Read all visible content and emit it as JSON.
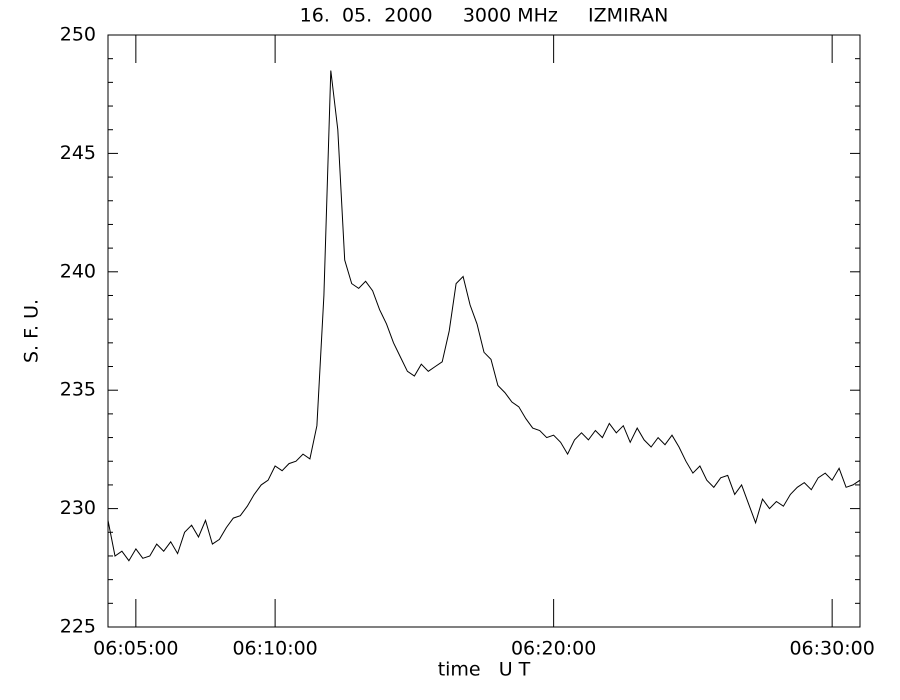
{
  "chart_data": {
    "type": "line",
    "title": "16.  05.  2000     3000 MHz     IZMIRAN",
    "xlabel": "time   U T",
    "ylabel": "S. F. U.",
    "x": [
      "06:04:00",
      "06:04:15",
      "06:04:30",
      "06:04:45",
      "06:05:00",
      "06:05:15",
      "06:05:30",
      "06:05:45",
      "06:06:00",
      "06:06:15",
      "06:06:30",
      "06:06:45",
      "06:07:00",
      "06:07:15",
      "06:07:30",
      "06:07:45",
      "06:08:00",
      "06:08:15",
      "06:08:30",
      "06:08:45",
      "06:09:00",
      "06:09:15",
      "06:09:30",
      "06:09:45",
      "06:10:00",
      "06:10:15",
      "06:10:30",
      "06:10:45",
      "06:11:00",
      "06:11:15",
      "06:11:30",
      "06:11:45",
      "06:12:00",
      "06:12:15",
      "06:12:30",
      "06:12:45",
      "06:13:00",
      "06:13:15",
      "06:13:30",
      "06:13:45",
      "06:14:00",
      "06:14:15",
      "06:14:30",
      "06:14:45",
      "06:15:00",
      "06:15:15",
      "06:15:30",
      "06:15:45",
      "06:16:00",
      "06:16:15",
      "06:16:30",
      "06:16:45",
      "06:17:00",
      "06:17:15",
      "06:17:30",
      "06:17:45",
      "06:18:00",
      "06:18:15",
      "06:18:30",
      "06:18:45",
      "06:19:00",
      "06:19:15",
      "06:19:30",
      "06:19:45",
      "06:20:00",
      "06:20:15",
      "06:20:30",
      "06:20:45",
      "06:21:00",
      "06:21:15",
      "06:21:30",
      "06:21:45",
      "06:22:00",
      "06:22:15",
      "06:22:30",
      "06:22:45",
      "06:23:00",
      "06:23:15",
      "06:23:30",
      "06:23:45",
      "06:24:00",
      "06:24:15",
      "06:24:30",
      "06:24:45",
      "06:25:00",
      "06:25:15",
      "06:25:30",
      "06:25:45",
      "06:26:00",
      "06:26:15",
      "06:26:30",
      "06:26:45",
      "06:27:00",
      "06:27:15",
      "06:27:30",
      "06:27:45",
      "06:28:00",
      "06:28:15",
      "06:28:30",
      "06:28:45",
      "06:29:00",
      "06:29:15",
      "06:29:30",
      "06:29:45",
      "06:30:00",
      "06:30:15",
      "06:30:30",
      "06:30:45",
      "06:31:00"
    ],
    "series": [
      {
        "color": "#000000",
        "values": [
          229.5,
          228.0,
          228.2,
          227.8,
          228.3,
          227.9,
          228.0,
          228.5,
          228.2,
          228.6,
          228.1,
          229.0,
          229.3,
          228.8,
          229.5,
          228.5,
          228.7,
          229.2,
          229.6,
          229.7,
          230.1,
          230.6,
          231.0,
          231.2,
          231.8,
          231.6,
          231.9,
          232.0,
          232.3,
          232.1,
          233.5,
          239.0,
          248.5,
          246.0,
          240.5,
          239.5,
          239.3,
          239.6,
          239.2,
          238.4,
          237.8,
          237.0,
          236.4,
          235.8,
          235.6,
          236.1,
          235.8,
          236.0,
          236.2,
          237.5,
          239.5,
          239.8,
          238.6,
          237.8,
          236.6,
          236.3,
          235.2,
          234.9,
          234.5,
          234.3,
          233.8,
          233.4,
          233.3,
          233.0,
          233.1,
          232.8,
          232.3,
          232.9,
          233.2,
          232.9,
          233.3,
          233.0,
          233.6,
          233.2,
          233.5,
          232.8,
          233.4,
          232.9,
          232.6,
          233.0,
          232.7,
          233.1,
          232.6,
          232.0,
          231.5,
          231.8,
          231.2,
          230.9,
          231.3,
          231.4,
          230.6,
          231.0,
          230.2,
          229.4,
          230.4,
          230.0,
          230.3,
          230.1,
          230.6,
          230.9,
          231.1,
          230.8,
          231.3,
          231.5,
          231.2,
          231.7,
          230.9,
          231.0,
          231.2
        ]
      }
    ],
    "xlim": [
      "06:04:00",
      "06:31:00"
    ],
    "xticks": [
      "06:05:00",
      "06:10:00",
      "06:20:00",
      "06:30:00"
    ],
    "ylim": [
      225,
      250
    ],
    "yticks": [
      225,
      230,
      235,
      240,
      245,
      250
    ],
    "yminorticks": [
      226,
      227,
      228,
      229,
      231,
      232,
      233,
      234,
      236,
      237,
      238,
      239,
      241,
      242,
      243,
      244,
      246,
      247,
      248,
      249
    ]
  }
}
